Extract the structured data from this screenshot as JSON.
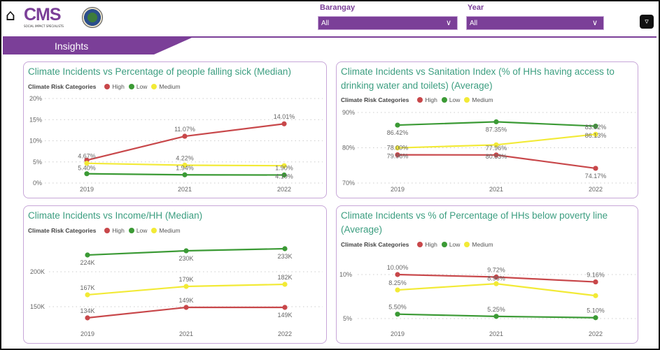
{
  "header": {
    "home_icon": "home-icon",
    "logo_text": "CMS",
    "logo_sub": "SOCIAL IMPACT SPECIALISTS",
    "logo_tm": "TM",
    "filters": [
      {
        "label": "Barangay",
        "value": "All"
      },
      {
        "label": "Year",
        "value": "All"
      }
    ],
    "filter_icon": "filter-icon"
  },
  "page_tab": "Insights",
  "colors": {
    "High": "#c8474a",
    "Low": "#3b9a35",
    "Medium": "#f2ea36",
    "accent": "#7b3f98",
    "title": "#3c9e80"
  },
  "legend": {
    "title": "Climate Risk Categories",
    "items": [
      "High",
      "Low",
      "Medium"
    ]
  },
  "chart_data": [
    {
      "type": "line",
      "title": "Climate Incidents vs Percentage of people falling sick (Median)",
      "categories": [
        "2019",
        "2021",
        "2022"
      ],
      "yticks": [
        "0%",
        "5%",
        "10%",
        "15%",
        "20%"
      ],
      "ylim": [
        0,
        20
      ],
      "series": [
        {
          "name": "High",
          "values": [
            5.4,
            11.07,
            14.01
          ],
          "labels": [
            "5.40%",
            "11.07%",
            "14.01%"
          ],
          "label_pos": [
            "below",
            "above",
            "above"
          ]
        },
        {
          "name": "Medium",
          "values": [
            4.67,
            4.22,
            4.1
          ],
          "labels": [
            "4.67%",
            "4.22%",
            "4.10%"
          ],
          "label_pos": [
            "above",
            "above",
            "below"
          ]
        },
        {
          "name": "Low",
          "values": [
            2.2,
            1.94,
            1.9
          ],
          "labels": [
            "",
            "1.94%",
            "1.90%"
          ],
          "label_pos": [
            "above",
            "above",
            "above"
          ]
        }
      ]
    },
    {
      "type": "line",
      "title": "Climate Incidents vs Sanitation Index (% of HHs having access to drinking water and toilets) (Average)",
      "categories": [
        "2019",
        "2021",
        "2022"
      ],
      "yticks": [
        "70%",
        "80%",
        "90%"
      ],
      "ylim": [
        70,
        90
      ],
      "series": [
        {
          "name": "High",
          "values": [
            78.0,
            77.96,
            74.17
          ],
          "labels": [
            "78.00%",
            "77.96%",
            "74.17%"
          ],
          "label_pos": [
            "above",
            "above",
            "below"
          ]
        },
        {
          "name": "Low",
          "values": [
            86.42,
            87.35,
            86.13
          ],
          "labels": [
            "86.42%",
            "87.35%",
            "86.13%"
          ],
          "label_pos": [
            "below",
            "below",
            "below"
          ]
        },
        {
          "name": "Medium",
          "values": [
            79.96,
            80.83,
            83.82
          ],
          "labels": [
            "79.96%",
            "80.83%",
            "83.82%"
          ],
          "label_pos": [
            "below",
            "below",
            "above"
          ]
        }
      ]
    },
    {
      "type": "line",
      "title": "Climate Incidents vs Income/HH (Median)",
      "categories": [
        "2019",
        "2021",
        "2022"
      ],
      "yticks": [
        "150K",
        "200K"
      ],
      "ytick_values": [
        150,
        200
      ],
      "ylim": [
        150,
        200
      ],
      "series": [
        {
          "name": "High",
          "values": [
            134,
            149,
            149
          ],
          "labels": [
            "134K",
            "149K",
            "149K"
          ],
          "label_pos": [
            "above",
            "above",
            "below"
          ]
        },
        {
          "name": "Low",
          "values": [
            224,
            230,
            233
          ],
          "labels": [
            "224K",
            "230K",
            "233K"
          ],
          "label_pos": [
            "below",
            "below",
            "below"
          ]
        },
        {
          "name": "Medium",
          "values": [
            167,
            179,
            182
          ],
          "labels": [
            "167K",
            "179K",
            "182K"
          ],
          "label_pos": [
            "above",
            "above",
            "above"
          ]
        }
      ]
    },
    {
      "type": "line",
      "title": "Climate Incidents vs % of Percentage of HHs below poverty line (Average)",
      "categories": [
        "2019",
        "2021",
        "2022"
      ],
      "yticks": [
        "5%",
        "10%"
      ],
      "ytick_values": [
        5,
        10
      ],
      "ylim": [
        5,
        10
      ],
      "series": [
        {
          "name": "High",
          "values": [
            10.0,
            9.72,
            9.16
          ],
          "labels": [
            "10.00%",
            "9.72%",
            "9.16%"
          ],
          "label_pos": [
            "above",
            "above",
            "above"
          ]
        },
        {
          "name": "Medium",
          "values": [
            8.25,
            8.96,
            7.6
          ],
          "labels": [
            "8.25%",
            "8.96%",
            ""
          ],
          "label_pos": [
            "above",
            "above",
            "above"
          ]
        },
        {
          "name": "Low",
          "values": [
            5.5,
            5.25,
            5.1
          ],
          "labels": [
            "5.50%",
            "5.25%",
            "5.10%"
          ],
          "label_pos": [
            "above",
            "above",
            "above"
          ]
        }
      ]
    }
  ]
}
